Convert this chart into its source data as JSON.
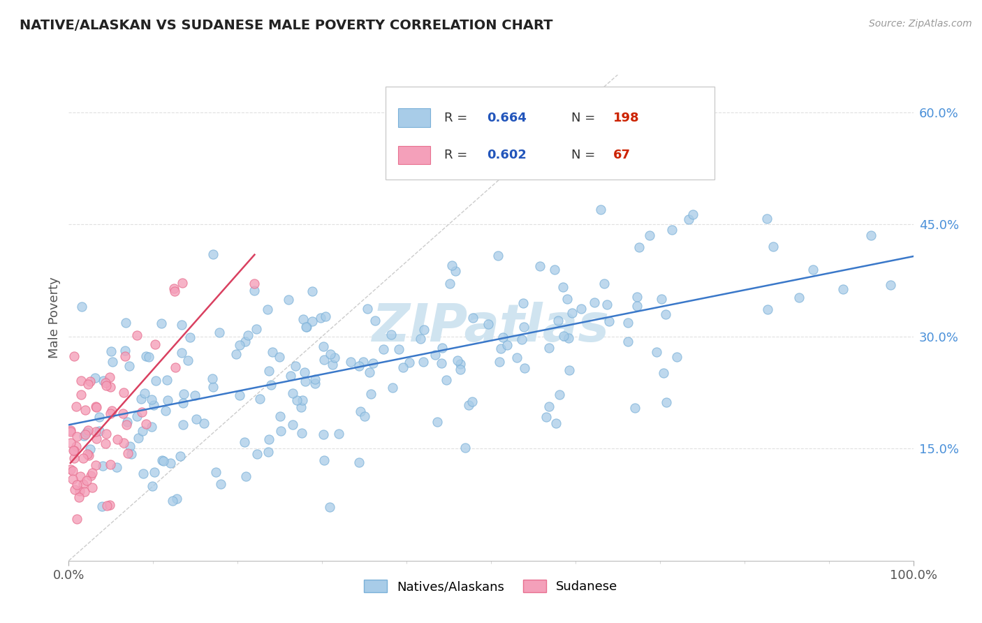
{
  "title": "NATIVE/ALASKAN VS SUDANESE MALE POVERTY CORRELATION CHART",
  "source": "Source: ZipAtlas.com",
  "ylabel": "Male Poverty",
  "xlim": [
    0.0,
    1.0
  ],
  "ylim": [
    0.0,
    0.65
  ],
  "ytick_vals": [
    0.15,
    0.3,
    0.45,
    0.6
  ],
  "yticklabels": [
    "15.0%",
    "30.0%",
    "45.0%",
    "60.0%"
  ],
  "xtick_vals": [
    0.0,
    1.0
  ],
  "xticklabels": [
    "0.0%",
    "100.0%"
  ],
  "blue_R": 0.664,
  "blue_N": 198,
  "pink_R": 0.602,
  "pink_N": 67,
  "blue_color": "#a8cce8",
  "pink_color": "#f4a0ba",
  "blue_edge_color": "#7ab0d8",
  "pink_edge_color": "#e87090",
  "blue_line_color": "#3a78c9",
  "pink_line_color": "#d94060",
  "diag_color": "#cccccc",
  "legend_blue_label": "Natives/Alaskans",
  "legend_pink_label": "Sudanese",
  "watermark": "ZIPatlas",
  "watermark_color": "#d0e4f0",
  "background_color": "#ffffff",
  "grid_color": "#e0e0e0",
  "title_color": "#222222",
  "axis_label_color": "#555555",
  "ytick_color": "#4a90d9",
  "xtick_color": "#555555",
  "legend_R_color": "#2255bb",
  "legend_N_color": "#cc2200",
  "legend_text_color": "#333333"
}
